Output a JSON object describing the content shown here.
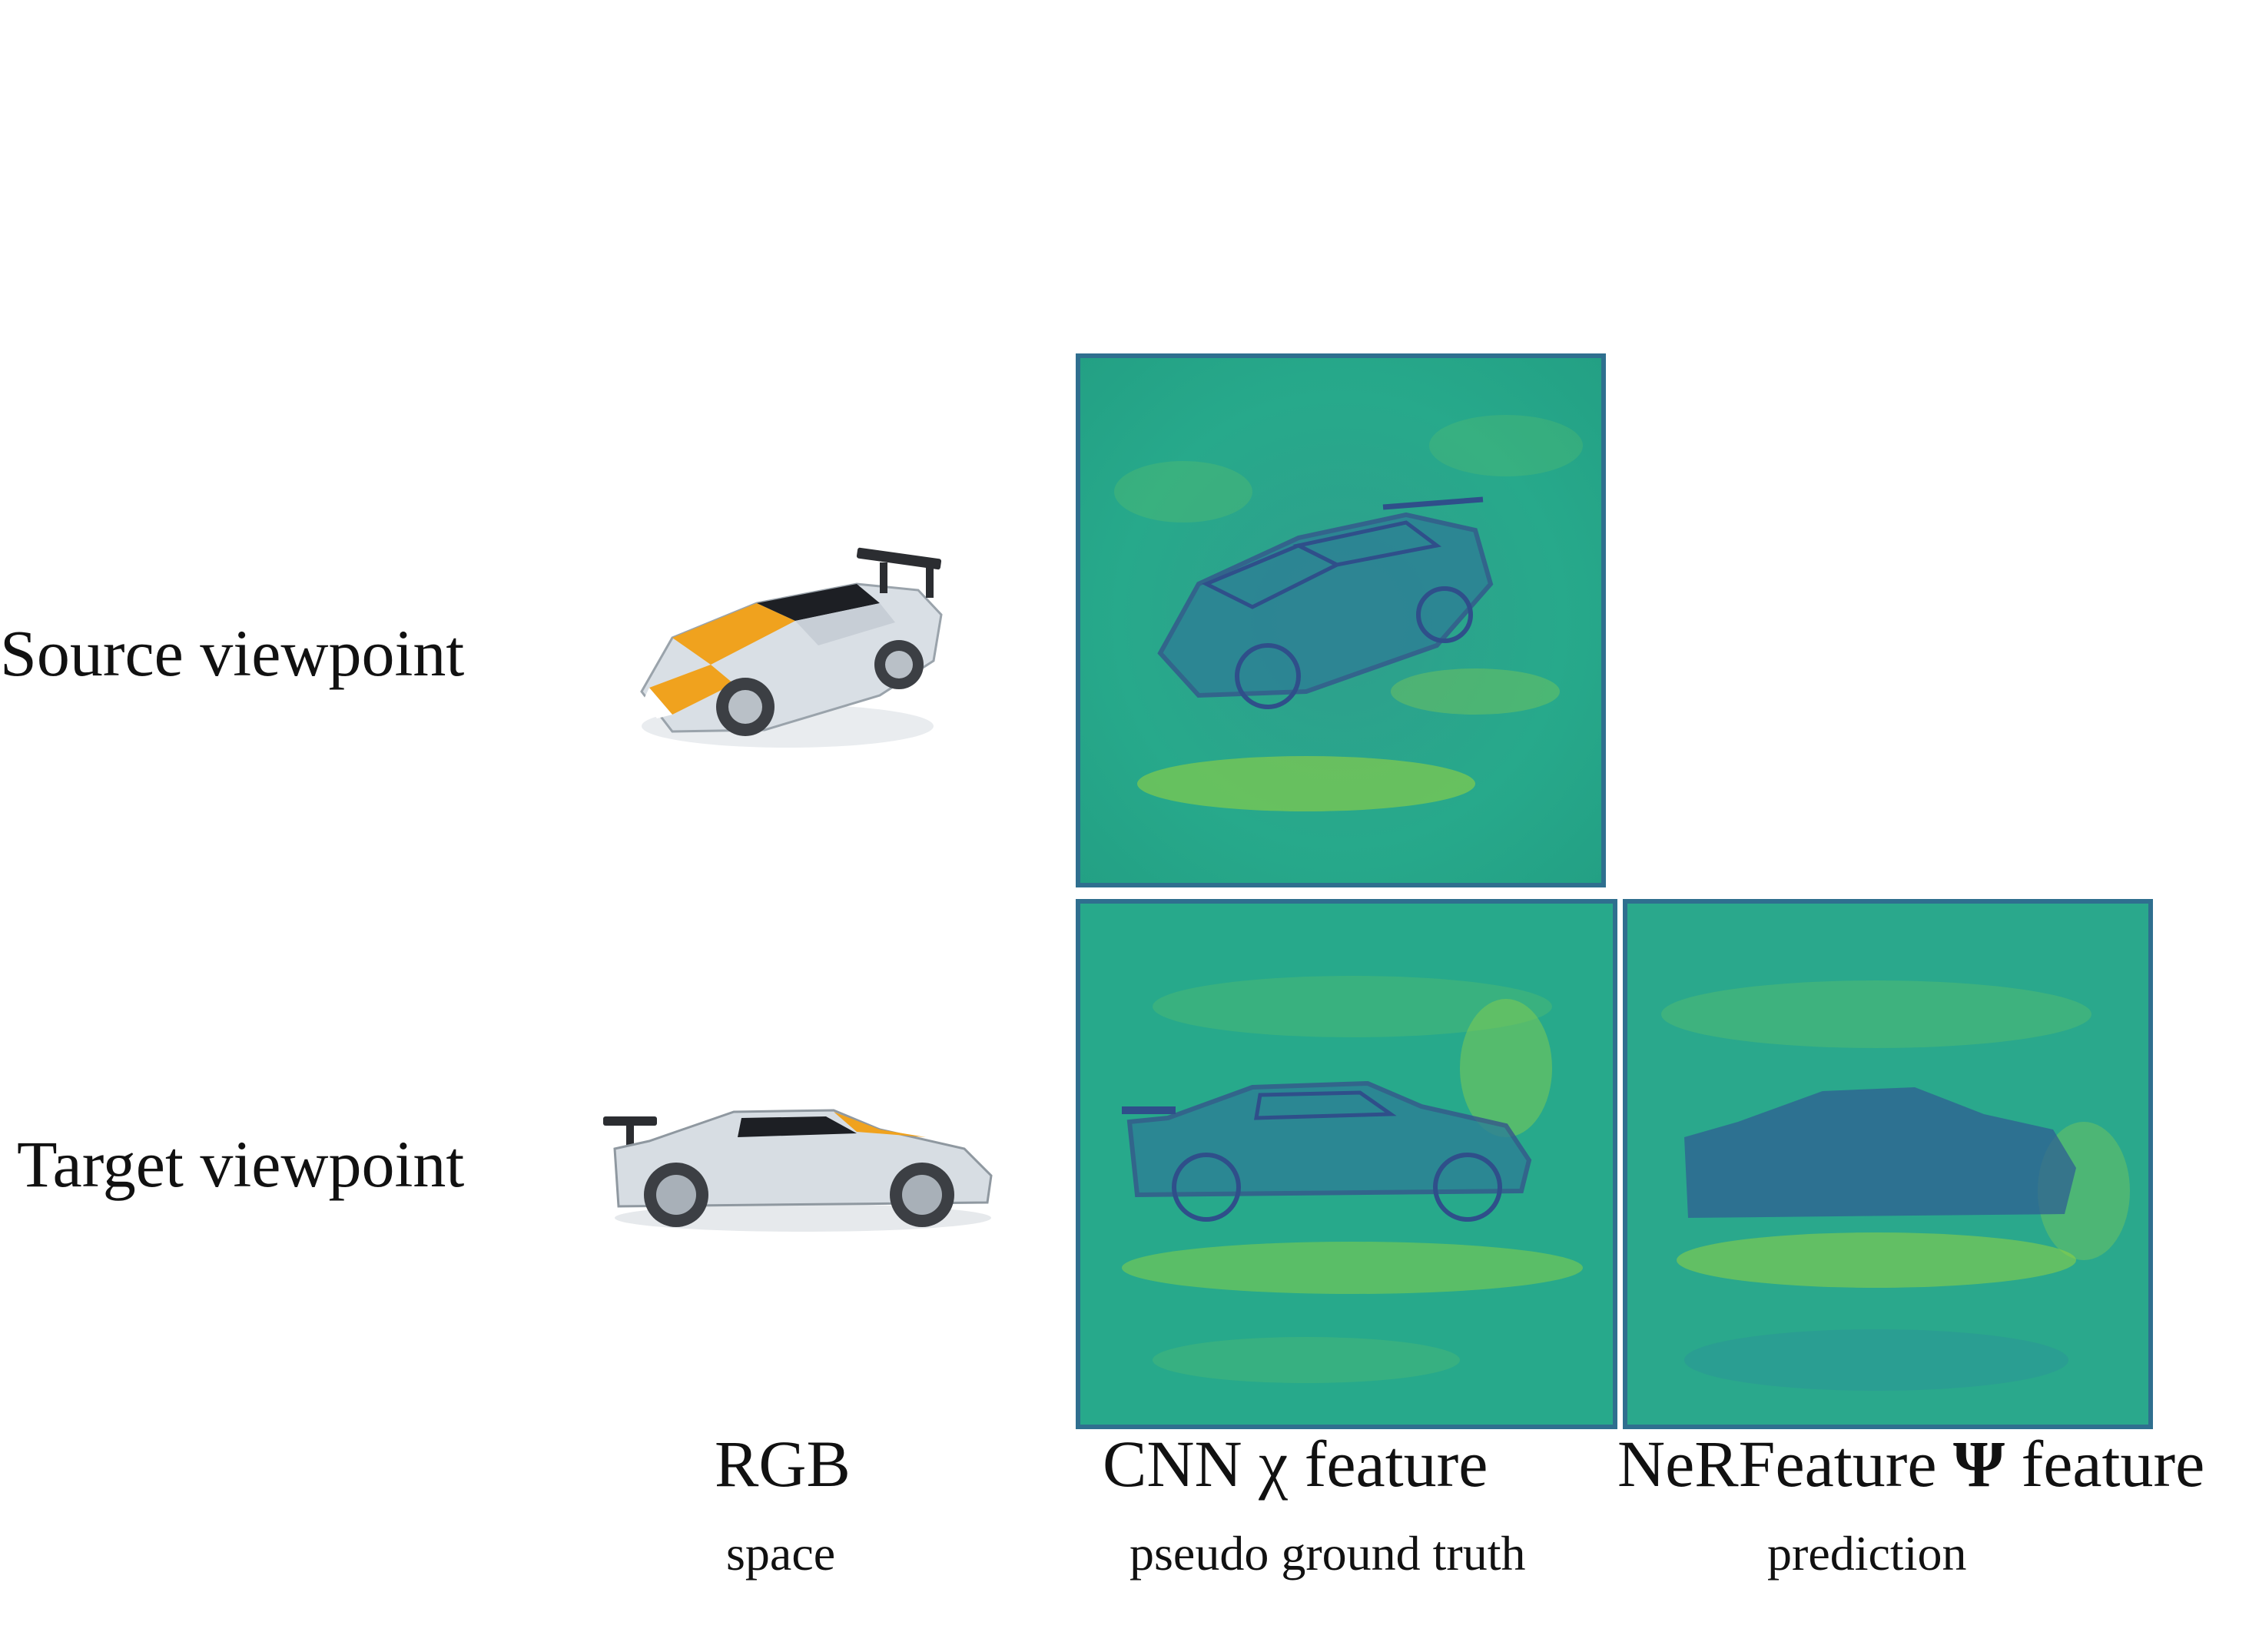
{
  "rows": {
    "source_label": "Source viewpoint",
    "target_label": "Target viewpoint"
  },
  "columns": {
    "rgb": {
      "title": "RGB",
      "subtitle": "space"
    },
    "cnn": {
      "title": "CNN χ feature",
      "subtitle": "pseudo ground truth"
    },
    "nerfeature": {
      "title_prefix": "NeRFeature ",
      "symbol": "Ψ",
      "title_suffix": " feature",
      "subtitle": "prediction"
    }
  },
  "colors": {
    "feature_base": "#27a98b",
    "feature_bright": "#9ad63c",
    "feature_edge": "#35558c",
    "feature_dark": "#2f4f8a",
    "car_body": "#d7dde3",
    "car_stripe": "#f0a21e",
    "car_window": "#1d1f24",
    "car_wheel": "#3c3f44"
  }
}
